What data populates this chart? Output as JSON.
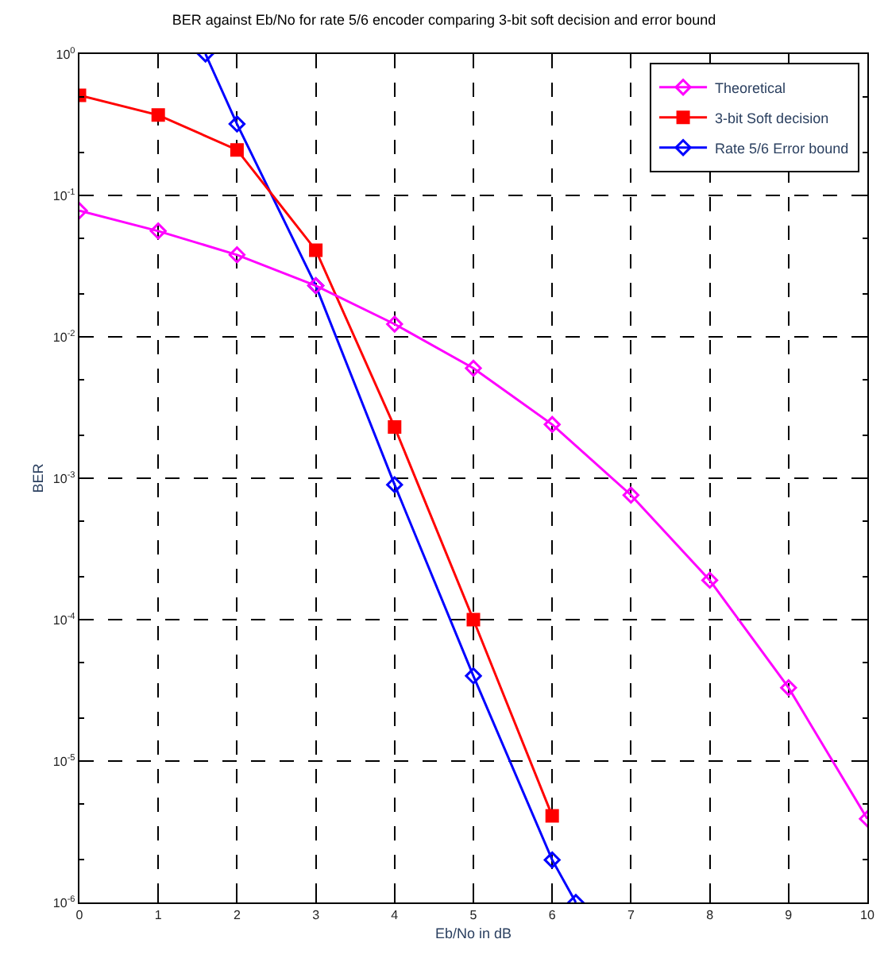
{
  "chart_data": {
    "type": "line",
    "title": "BER against Eb/No for rate 5/6 encoder comparing 3-bit soft decision and error bound",
    "xlabel": "Eb/No in dB",
    "ylabel": "BER",
    "xlim": [
      0,
      10
    ],
    "xticks": [
      0,
      1,
      2,
      3,
      4,
      5,
      6,
      7,
      8,
      9,
      10
    ],
    "ylim": [
      1e-06,
      1
    ],
    "yticks": [
      {
        "value": 1e-06,
        "label": "10$^{-6}$"
      },
      {
        "value": 1e-05,
        "label": "10$^{-5}$"
      },
      {
        "value": 0.0001,
        "label": "10$^{-4}$"
      },
      {
        "value": 0.001,
        "label": "10$^{-3}$"
      },
      {
        "value": 0.01,
        "label": "10$^{-2}$"
      },
      {
        "value": 0.1,
        "label": "10$^{-1}$"
      },
      {
        "value": 1,
        "label": "10$^{0}$"
      }
    ],
    "log": "y",
    "grid": true,
    "legend": "top right",
    "line_style": "solid",
    "series": [
      {
        "name": "Theoretical",
        "color": "#ff00ff",
        "marker": "diamond",
        "x": [
          0,
          1,
          2,
          3,
          4,
          5,
          6,
          7,
          8,
          9,
          10
        ],
        "values": [
          0.078,
          0.056,
          0.038,
          0.023,
          0.0123,
          0.006,
          0.0024,
          0.00076,
          0.00019,
          3.3e-05,
          3.9e-06
        ]
      },
      {
        "name": "3-bit Soft decision",
        "color": "#ff0000",
        "marker": "square",
        "x": [
          0,
          1,
          2,
          3,
          4,
          5,
          6
        ],
        "values": [
          0.51,
          0.37,
          0.21,
          0.041,
          0.0023,
          0.0001,
          4.1e-06
        ]
      },
      {
        "name": "Rate 5/6 Error bound",
        "color": "#0000ff",
        "marker": "diamond",
        "x": [
          1.6,
          2,
          3,
          4,
          5,
          6,
          6.3
        ],
        "values": [
          1,
          0.32,
          0.023,
          0.0009,
          4e-05,
          2e-06,
          1e-06
        ]
      }
    ]
  }
}
